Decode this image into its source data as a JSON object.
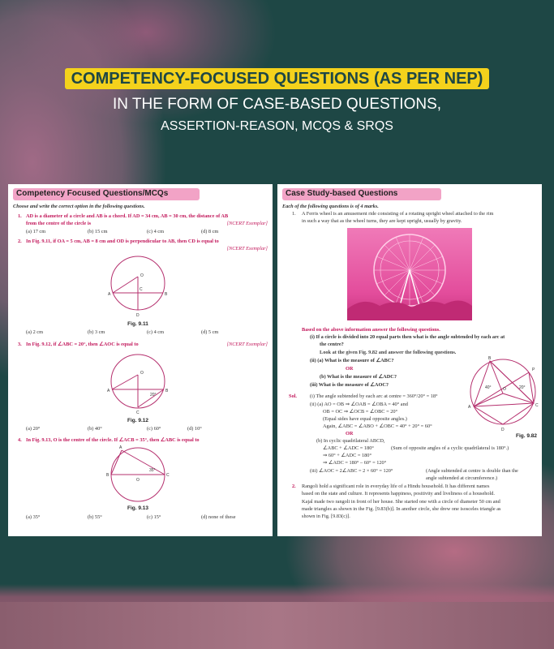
{
  "banner": {
    "line1": "COMPETENCY-FOCUSED QUESTIONS (AS PER NEP)",
    "line2": "IN THE FORM OF CASE-BASED QUESTIONS,",
    "line3": "ASSERTION-REASON, MCQS & SRQS",
    "highlight_color": "#f4d21c"
  },
  "left": {
    "title": "Competency Focused Questions/MCQs",
    "instruction": "Choose and write the correct option in the following questions.",
    "q1": {
      "num": "1.",
      "text1": "AD is a diameter of a circle and AB is a chord. If AD = 34 cm, AB = 30 cm, the distance of AB",
      "text2": "from the centre of the circle is",
      "src": "[NCERT Exemplar]",
      "opts": [
        "(a) 17 cm",
        "(b) 15 cm",
        "(c) 4 cm",
        "(d) 8 cm"
      ]
    },
    "q2": {
      "num": "2.",
      "text": "In Fig. 9.11, if OA = 5 cm, AB = 8 cm and OD is perpendicular to AB, then CD is equal to",
      "src": "[NCERT Exemplar]",
      "fig": "Fig. 9.11",
      "labels": [
        "O",
        "A",
        "C",
        "B",
        "D"
      ],
      "opts": [
        "(a) 2 cm",
        "(b) 3 cm",
        "(c) 4 cm",
        "(d) 5 cm"
      ]
    },
    "q3": {
      "num": "3.",
      "text": "In Fig. 9.12, if ∠ABC = 20°, then ∠AOC is equal to",
      "src": "[NCERT Exemplar]",
      "fig": "Fig. 9.12",
      "labels": [
        "O",
        "A",
        "B",
        "C",
        "20°"
      ],
      "opts": [
        "(a) 20°",
        "(b) 40°",
        "(c) 60°",
        "(d) 10°"
      ]
    },
    "q4": {
      "num": "4.",
      "text": "In Fig. 9.13, O is the centre of the circle. If ∠ACB = 35°, then ∠ABC is equal to",
      "fig": "Fig. 9.13",
      "labels": [
        "A",
        "B",
        "O",
        "C",
        "35°"
      ],
      "opts": [
        "(a) 35°",
        "(b) 55°",
        "(c) 15°",
        "(d) none of these"
      ]
    }
  },
  "right": {
    "title": "Case Study-based Questions",
    "instruction": "Each of the following questions is of 4 marks.",
    "q1_num": "1.",
    "q1_text1": "A Ferris wheel is an amusement ride consisting of a rotating upright wheel attached to the rim",
    "q1_text2": "in such a way that as the wheel turns, they are kept upright, usually by gravity.",
    "based": "Based on the above information answer the following questions.",
    "qi1": "(i)  If a circle is divided into 20 equal parts then what is the angle subtended by each arc at",
    "qi2": "the centre?",
    "look": "Look at the given Fig. 9.82 and answer the following questions.",
    "qii": "(ii)  (a) What is the measure of ∠ABC?",
    "or": "OR",
    "qiib": "(b) What is the measure of ∠ADC?",
    "qiii": "(iii)  What is the measure of ∠AOC?",
    "fig": "Fig. 9.82",
    "fig_labels": [
      "B",
      "P",
      "40°",
      "O",
      "20°",
      "A",
      "C",
      "D"
    ],
    "sol_label": "Sol.",
    "sol": [
      "(i)  The angle subtended by each arc at centre = 360°/20° = 18°",
      "(ii) (a)  AO = OB ⇒ ∠OAB = ∠OBA = 40° and",
      "OB = OC ⇒ ∠OCB = ∠OBC = 20°",
      "(Equal sides have equal opposite angles.)",
      "Again, ∠ABC = ∠ABO + ∠OBC = 40° + 20° = 60°",
      "OR",
      "(b)  In cyclic quadrilateral ABCD,",
      "∠ABC + ∠ADC = 180°",
      "⇒          60° + ∠ADC = 180°",
      "⇒          ∠ADC = 180° – 60° = 120°",
      "(iii)  ∠AOC = 2∠ABC = 2 × 60° = 120°",
      "angle subtended at circumference.)"
    ],
    "sol_note1": "(Sum of opposite angles of a cyclic quadrilateral is 180°.)",
    "sol_note2": "(Angle subtended at centre is double than the",
    "q2_num": "2.",
    "q2": [
      "Rangoli hold a significant role in everyday life of a Hindu household. It has different names",
      "based on the state and culture. It represents happiness, positivity and liveliness of a household.",
      "Kajal made two rangoli in front of her house. She started one with a circle of diameter 50 cm and",
      "made triangles as shown in the Fig. [9.83(b)]. In another circle, she drew one isosceles triangle as",
      "shown in Fig. [9.83(c)]."
    ]
  }
}
